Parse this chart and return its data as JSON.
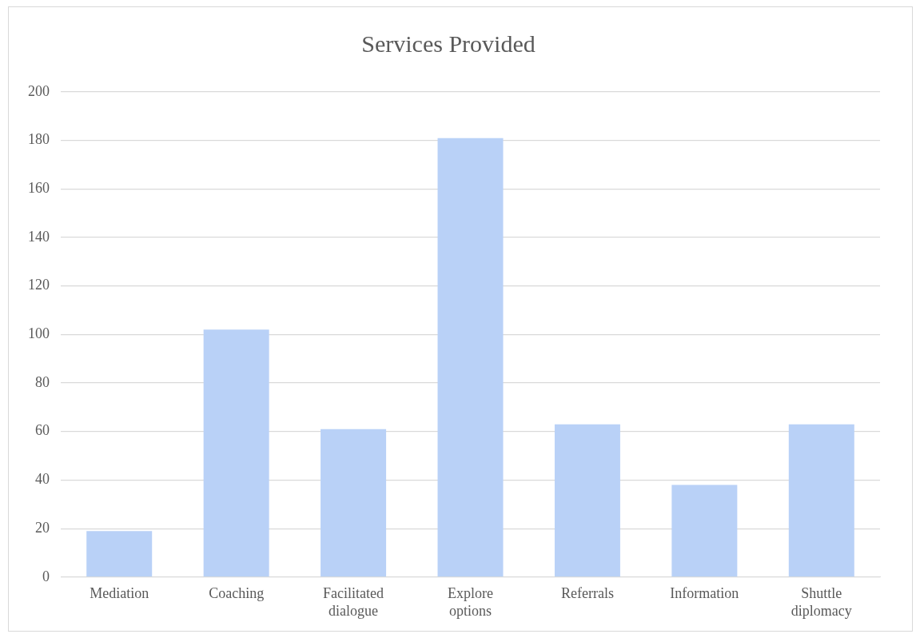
{
  "chart_data": {
    "type": "bar",
    "title": "Services Provided",
    "categories": [
      "Mediation",
      "Coaching",
      "Facilitated dialogue",
      "Explore options",
      "Referrals",
      "Information",
      "Shuttle diplomacy"
    ],
    "values": [
      19,
      102,
      61,
      181,
      63,
      38,
      63
    ],
    "color": "#b9d1f7",
    "ylim": [
      0,
      200
    ],
    "yticks": [
      0,
      20,
      40,
      60,
      80,
      100,
      120,
      140,
      160,
      180,
      200
    ],
    "grid": "y",
    "legend": false
  }
}
